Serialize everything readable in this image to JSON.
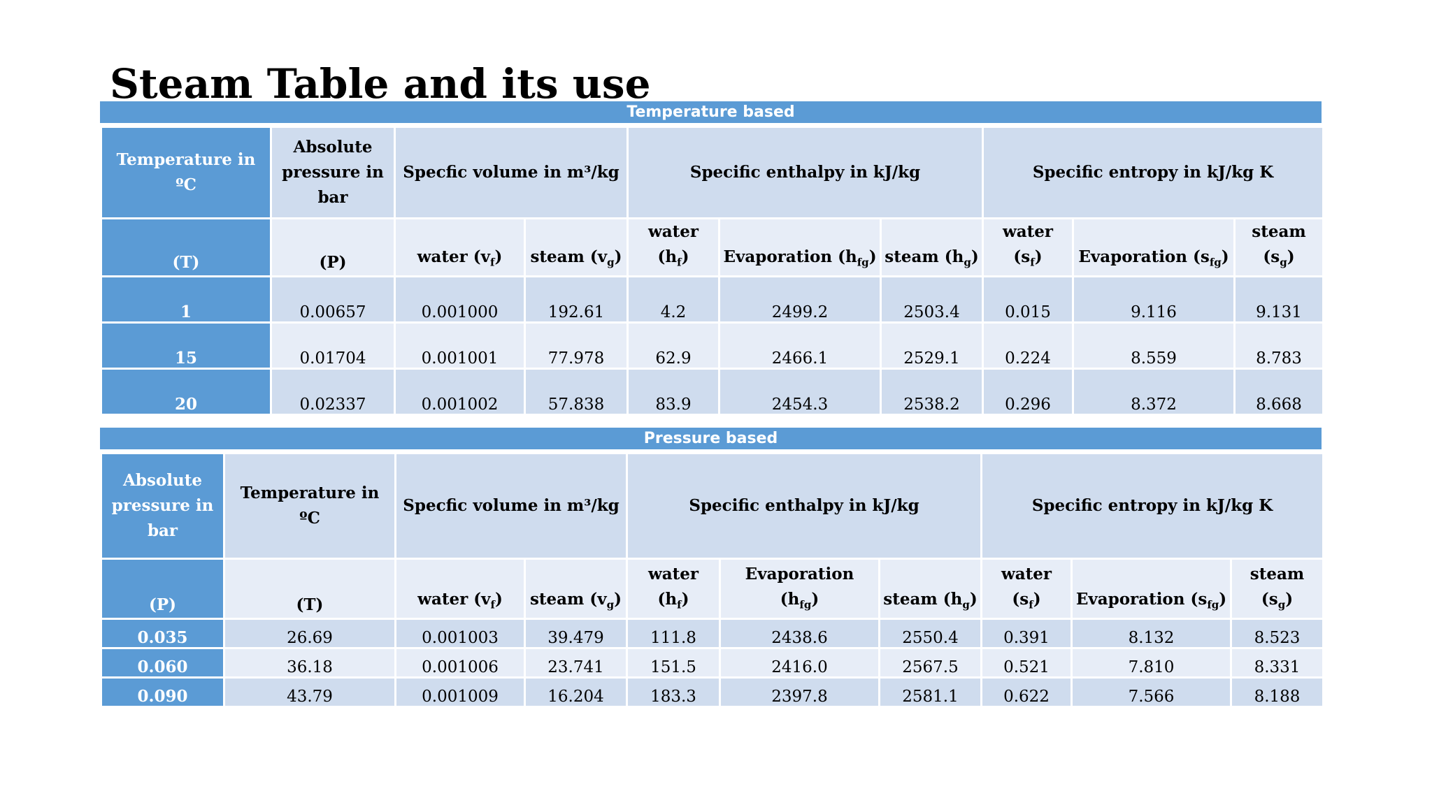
{
  "title": "Steam Table and its use",
  "temperature_table": {
    "banner": "Temperature based",
    "headers": {
      "temperature": "Temperature in ºC",
      "pressure": "Absolute pressure in bar",
      "volume": "Specfic volume in m³/kg",
      "enthalpy": "Specific enthalpy in kJ/kg",
      "entropy": "Specific entropy in kJ/kg K"
    },
    "subheaders": {
      "T": "(T)",
      "P": "(P)",
      "vf": "water (vf)",
      "vg": "steam (vg)",
      "hf": "water (hf)",
      "hfg": "Evaporation (hfg)",
      "hg": "steam (hg)",
      "sf": "water (sf)",
      "sfg": "Evaporation (sfg)",
      "sg": "steam (sg)"
    },
    "rows": [
      {
        "T": "1",
        "P": "0.00657",
        "vf": "0.001000",
        "vg": "192.61",
        "hf": "4.2",
        "hfg": "2499.2",
        "hg": "2503.4",
        "sf": "0.015",
        "sfg": "9.116",
        "sg": "9.131"
      },
      {
        "T": "15",
        "P": "0.01704",
        "vf": "0.001001",
        "vg": "77.978",
        "hf": "62.9",
        "hfg": "2466.1",
        "hg": "2529.1",
        "sf": "0.224",
        "sfg": "8.559",
        "sg": "8.783"
      },
      {
        "T": "20",
        "P": "0.02337",
        "vf": "0.001002",
        "vg": "57.838",
        "hf": "83.9",
        "hfg": "2454.3",
        "hg": "2538.2",
        "sf": "0.296",
        "sfg": "8.372",
        "sg": "8.668"
      }
    ]
  },
  "pressure_table": {
    "banner": "Pressure based",
    "headers": {
      "pressure": "Absolute pressure in bar",
      "temperature": "Temperature in ºC",
      "volume": "Specfic volume in m³/kg",
      "enthalpy": "Specific enthalpy in kJ/kg",
      "entropy": "Specific entropy in kJ/kg K"
    },
    "subheaders": {
      "P": "(P)",
      "T": "(T)",
      "vf": "water (vf)",
      "vg": "steam (vg)",
      "hf": "water (hf)",
      "hfg": "Evaporation (hfg)",
      "hg": "steam (hg)",
      "sf": "water (sf)",
      "sfg": "Evaporation (sfg)",
      "sg": "steam (sg)"
    },
    "rows": [
      {
        "P": "0.035",
        "T": "26.69",
        "vf": "0.001003",
        "vg": "39.479",
        "hf": "111.8",
        "hfg": "2438.6",
        "hg": "2550.4",
        "sf": "0.391",
        "sfg": "8.132",
        "sg": "8.523"
      },
      {
        "P": "0.060",
        "T": "36.18",
        "vf": "0.001006",
        "vg": "23.741",
        "hf": "151.5",
        "hfg": "2416.0",
        "hg": "2567.5",
        "sf": "0.521",
        "sfg": "7.810",
        "sg": "8.331"
      },
      {
        "P": "0.090",
        "T": "43.79",
        "vf": "0.001009",
        "vg": "16.204",
        "hf": "183.3",
        "hfg": "2397.8",
        "hg": "2581.1",
        "sf": "0.622",
        "sfg": "7.566",
        "sg": "8.188"
      }
    ]
  }
}
